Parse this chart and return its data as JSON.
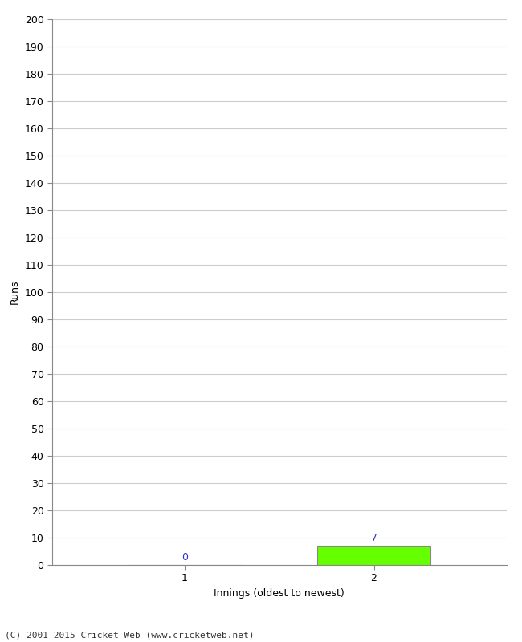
{
  "xlabel": "Innings (oldest to newest)",
  "ylabel": "Runs",
  "categories": [
    1,
    2
  ],
  "values": [
    0,
    7
  ],
  "bar_color_0": "#ffffff",
  "bar_color_1": "#66ff00",
  "bar_edge_color": "#888888",
  "ylim": [
    0,
    200
  ],
  "yticks": [
    0,
    10,
    20,
    30,
    40,
    50,
    60,
    70,
    80,
    90,
    100,
    110,
    120,
    130,
    140,
    150,
    160,
    170,
    180,
    190,
    200
  ],
  "xticks": [
    1,
    2
  ],
  "value_label_color": "#3333cc",
  "footer": "(C) 2001-2015 Cricket Web (www.cricketweb.net)",
  "background_color": "#ffffff",
  "grid_color": "#cccccc",
  "tick_label_color": "#000000",
  "axis_color": "#888888",
  "bar_width": 0.6
}
